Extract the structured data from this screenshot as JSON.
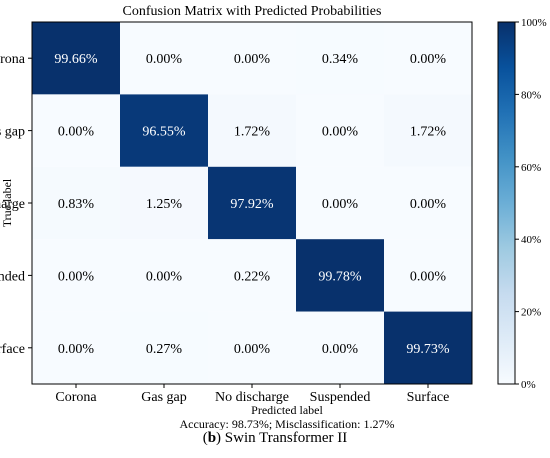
{
  "chart_data": {
    "type": "heatmap",
    "title": "Confusion Matrix with Predicted Probabilities",
    "xlabel": "Predicted label",
    "ylabel": "True label",
    "x_categories": [
      "Corona",
      "Gas gap",
      "No discharge",
      "Suspended",
      "Surface"
    ],
    "y_categories": [
      "Corona",
      "Gas gap",
      "No discharge",
      "Suspended",
      "Surface"
    ],
    "values": [
      [
        99.66,
        0.0,
        0.0,
        0.34,
        0.0
      ],
      [
        0.0,
        96.55,
        1.72,
        0.0,
        1.72
      ],
      [
        0.83,
        1.25,
        97.92,
        0.0,
        0.0
      ],
      [
        0.0,
        0.0,
        0.22,
        99.78,
        0.0
      ],
      [
        0.0,
        0.27,
        0.0,
        0.0,
        99.73
      ]
    ],
    "cell_labels": [
      [
        "99.66%",
        "0.00%",
        "0.00%",
        "0.34%",
        "0.00%"
      ],
      [
        "0.00%",
        "96.55%",
        "1.72%",
        "0.00%",
        "1.72%"
      ],
      [
        "0.83%",
        "1.25%",
        "97.92%",
        "0.00%",
        "0.00%"
      ],
      [
        "0.00%",
        "0.00%",
        "0.22%",
        "99.78%",
        "0.00%"
      ],
      [
        "0.00%",
        "0.27%",
        "0.00%",
        "0.00%",
        "99.73%"
      ]
    ],
    "value_range": [
      0,
      100
    ],
    "colormap": {
      "low": "#f7fbff",
      "high": "#08306b"
    },
    "colorbar": {
      "ticks": [
        0,
        20,
        40,
        60,
        80,
        100
      ],
      "tick_labels": [
        "0%",
        "20%",
        "40%",
        "60%",
        "80%",
        "100%"
      ]
    },
    "summary": "Accuracy: 98.73%; Misclassification: 1.27%"
  },
  "caption": {
    "prefix": "(",
    "letter": "b",
    "rest": ") Swin Transformer II"
  }
}
